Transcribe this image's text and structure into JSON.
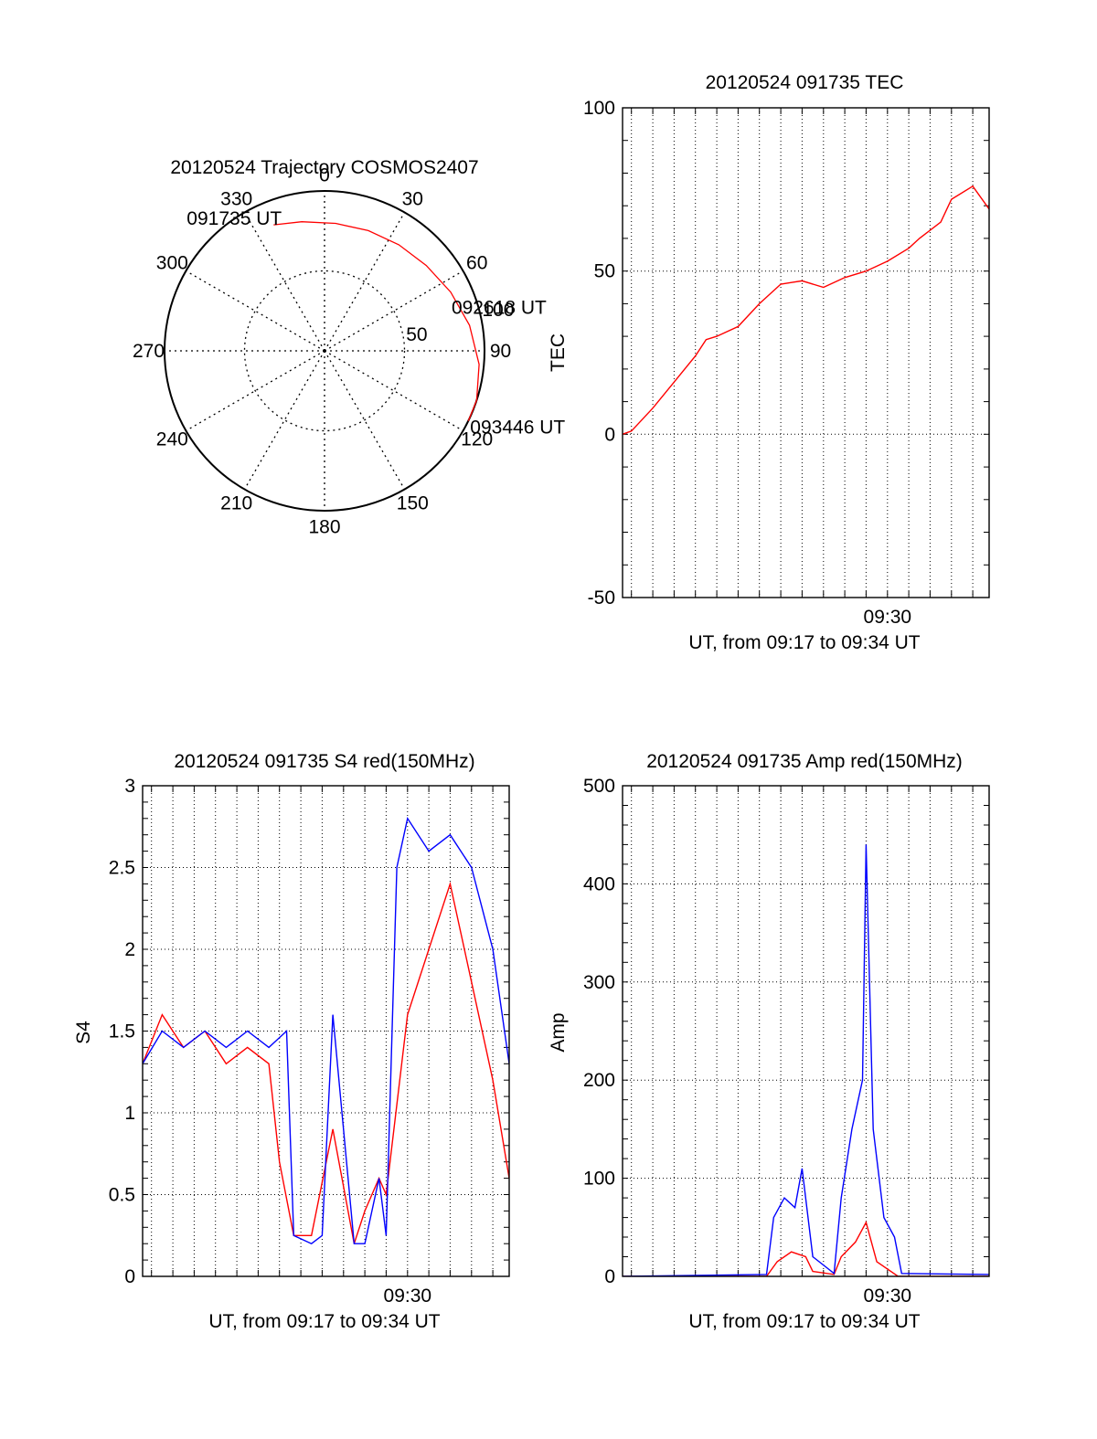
{
  "figure": {
    "colors": {
      "red": "#ff0000",
      "blue": "#0000ff",
      "axis": "#000000",
      "grid": "#000000",
      "background": "#ffffff"
    }
  },
  "chart_data": [
    {
      "type": "polar",
      "title": "20120524 Trajectory COSMOS2407",
      "angle_labels": [
        "0",
        "30",
        "60",
        "90",
        "120",
        "150",
        "180",
        "210",
        "240",
        "270",
        "300",
        "330"
      ],
      "angles_deg": [
        0,
        30,
        60,
        90,
        120,
        150,
        180,
        210,
        240,
        270,
        300,
        330
      ],
      "radial_labels": [
        "50",
        "100"
      ],
      "radial_values": [
        50,
        100
      ],
      "rlim": [
        0,
        100
      ],
      "grid": true,
      "series": [
        {
          "color": "#ff0000",
          "points": [
            {
              "az": 338,
              "r": 85
            },
            {
              "az": 350,
              "r": 82
            },
            {
              "az": 5,
              "r": 80
            },
            {
              "az": 20,
              "r": 80
            },
            {
              "az": 35,
              "r": 81
            },
            {
              "az": 50,
              "r": 83
            },
            {
              "az": 65,
              "r": 87
            },
            {
              "az": 80,
              "r": 92
            },
            {
              "az": 95,
              "r": 97
            },
            {
              "az": 108,
              "r": 100
            },
            {
              "az": 116,
              "r": 100
            }
          ]
        }
      ],
      "annotations": [
        {
          "text": "091735 UT",
          "az": 338,
          "r": 85
        },
        {
          "text": "092618 UT",
          "az": 62,
          "r": 86
        },
        {
          "text": "093446 UT",
          "az": 116,
          "r": 100
        }
      ]
    },
    {
      "type": "line",
      "title": "20120524 091735 TEC",
      "xlabel": "UT, from 09:17 to 09:34 UT",
      "ylabel": "TEC",
      "xlim": [
        "09:17:35",
        "09:34:46"
      ],
      "ylim": [
        -50,
        100
      ],
      "yticks": [
        -50,
        0,
        50,
        100
      ],
      "xtick_labels": [
        {
          "label": "09:30",
          "at": "09:30:00"
        }
      ],
      "grid": true,
      "series": [
        {
          "color": "#ff0000",
          "x": [
            "09:17:35",
            "09:18:00",
            "09:19:00",
            "09:20:00",
            "09:21:00",
            "09:21:30",
            "09:22:00",
            "09:23:00",
            "09:24:00",
            "09:25:00",
            "09:25:30",
            "09:26:00",
            "09:27:00",
            "09:28:00",
            "09:29:00",
            "09:30:00",
            "09:31:00",
            "09:31:30",
            "09:32:30",
            "09:33:00",
            "09:34:00",
            "09:34:46"
          ],
          "values": [
            0,
            1,
            8,
            16,
            24,
            29,
            30,
            33,
            40,
            46,
            46.5,
            47,
            45,
            48,
            50,
            53,
            57,
            60,
            65,
            72,
            76,
            69
          ]
        }
      ]
    },
    {
      "type": "line",
      "title": "20120524 091735 S4 red(150MHz)",
      "xlabel": "UT, from 09:17 to 09:34 UT",
      "ylabel": "S4",
      "xlim": [
        "09:17:35",
        "09:34:46"
      ],
      "ylim": [
        0,
        3
      ],
      "yticks": [
        0,
        0.5,
        1,
        1.5,
        2,
        2.5,
        3
      ],
      "ytick_labels": [
        "0",
        "0.5",
        "1",
        "1.5",
        "2",
        "2.5",
        "3"
      ],
      "xtick_labels": [
        {
          "label": "09:30",
          "at": "09:30:00"
        }
      ],
      "grid": true,
      "series": [
        {
          "color": "#ff0000",
          "x": [
            "09:17:35",
            "09:18:30",
            "09:19:30",
            "09:20:30",
            "09:21:30",
            "09:22:30",
            "09:23:30",
            "09:24:00",
            "09:24:40",
            "09:25:30",
            "09:26:30",
            "09:27:30",
            "09:28:00",
            "09:28:40",
            "09:29:00",
            "09:30:00",
            "09:31:00",
            "09:32:00",
            "09:33:00",
            "09:34:00",
            "09:34:46"
          ],
          "values": [
            1.3,
            1.6,
            1.4,
            1.5,
            1.3,
            1.4,
            1.3,
            0.7,
            0.25,
            0.25,
            0.9,
            0.2,
            0.4,
            0.6,
            0.5,
            1.6,
            2.0,
            2.4,
            1.8,
            1.2,
            0.6
          ]
        },
        {
          "color": "#0000ff",
          "x": [
            "09:17:35",
            "09:18:30",
            "09:19:30",
            "09:20:30",
            "09:21:30",
            "09:22:30",
            "09:23:30",
            "09:24:20",
            "09:24:40",
            "09:25:30",
            "09:26:00",
            "09:26:30",
            "09:27:30",
            "09:28:00",
            "09:28:40",
            "09:29:00",
            "09:29:30",
            "09:30:00",
            "09:31:00",
            "09:32:00",
            "09:33:00",
            "09:34:00",
            "09:34:46"
          ],
          "values": [
            1.3,
            1.5,
            1.4,
            1.5,
            1.4,
            1.5,
            1.4,
            1.5,
            0.25,
            0.2,
            0.25,
            1.6,
            0.2,
            0.2,
            0.6,
            0.25,
            2.5,
            2.8,
            2.6,
            2.7,
            2.5,
            2.0,
            1.3
          ]
        }
      ]
    },
    {
      "type": "line",
      "title": "20120524 091735 Amp red(150MHz)",
      "xlabel": "UT, from 09:17 to 09:34 UT",
      "ylabel": "Amp",
      "xlim": [
        "09:17:35",
        "09:34:46"
      ],
      "ylim": [
        0,
        500
      ],
      "yticks": [
        0,
        100,
        200,
        300,
        400,
        500
      ],
      "xtick_labels": [
        {
          "label": "09:30",
          "at": "09:30:00"
        }
      ],
      "grid": true,
      "series": [
        {
          "color": "#ff0000",
          "x": [
            "09:17:35",
            "09:24:20",
            "09:24:50",
            "09:25:30",
            "09:26:10",
            "09:26:30",
            "09:27:30",
            "09:27:50",
            "09:28:30",
            "09:29:00",
            "09:29:30",
            "09:30:30",
            "09:34:46"
          ],
          "values": [
            0,
            0,
            15,
            25,
            20,
            5,
            2,
            20,
            35,
            55,
            15,
            0,
            0
          ]
        },
        {
          "color": "#0000ff",
          "x": [
            "09:17:35",
            "09:24:20",
            "09:24:40",
            "09:25:10",
            "09:25:40",
            "09:26:00",
            "09:26:30",
            "09:27:30",
            "09:27:50",
            "09:28:20",
            "09:28:50",
            "09:29:00",
            "09:29:20",
            "09:29:50",
            "09:30:20",
            "09:30:40",
            "09:34:46"
          ],
          "values": [
            0,
            2,
            60,
            80,
            70,
            110,
            20,
            3,
            80,
            150,
            200,
            440,
            150,
            60,
            40,
            3,
            2
          ]
        }
      ]
    }
  ]
}
